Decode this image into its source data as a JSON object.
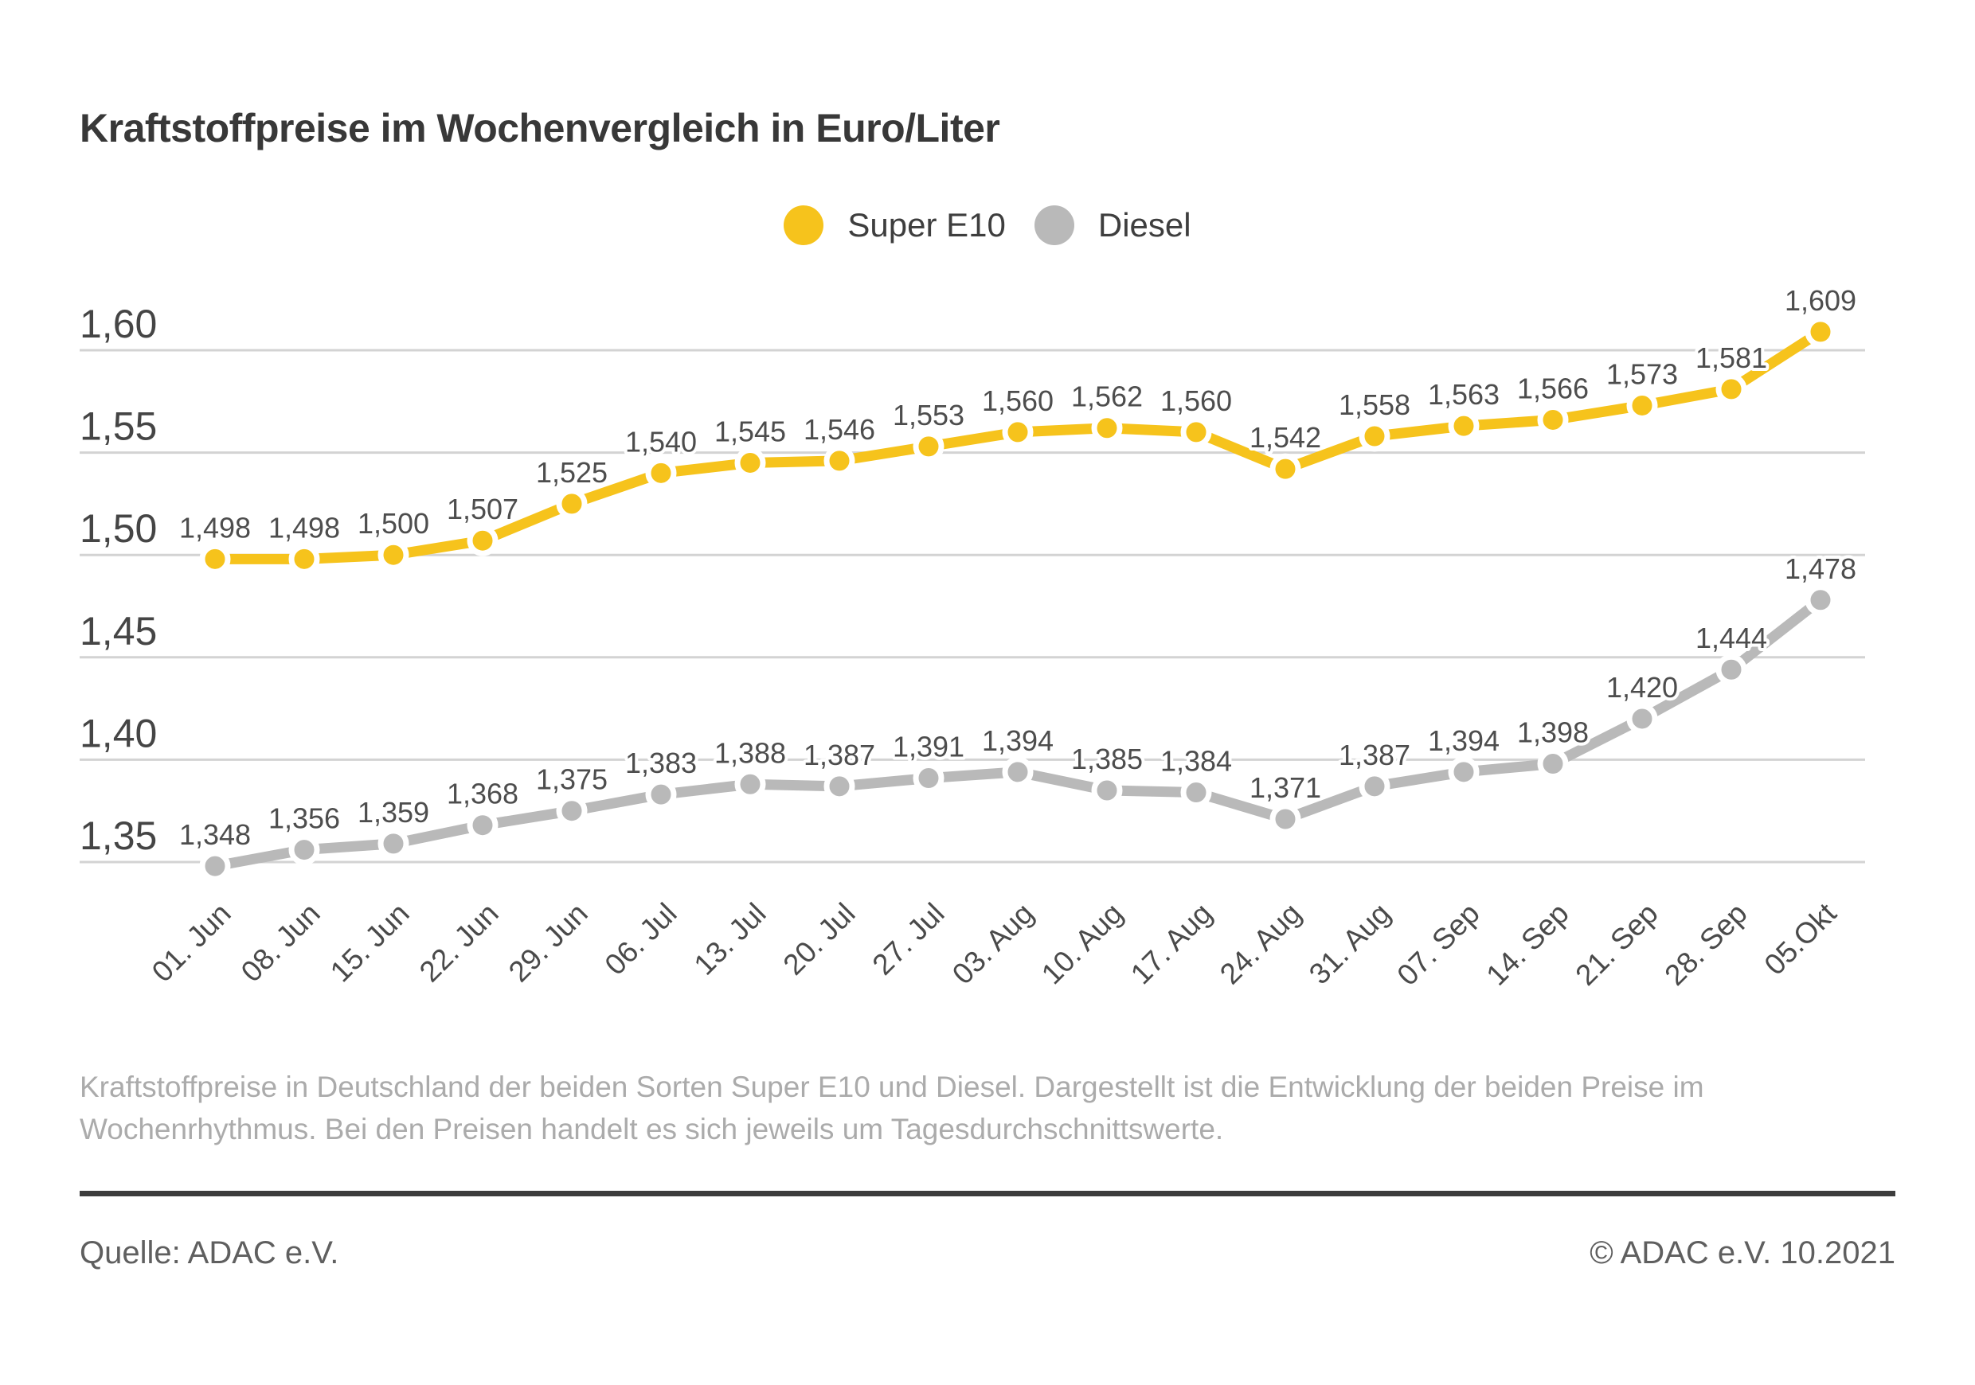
{
  "title": "Kraftstoffpreise im Wochenvergleich in Euro/Liter",
  "legend": [
    {
      "label": "Super E10",
      "color": "#F6C31C"
    },
    {
      "label": "Diesel",
      "color": "#B9B9B9"
    }
  ],
  "chart_data": {
    "type": "line",
    "unit": "Euro/Liter",
    "categories": [
      "01. Jun",
      "08. Jun",
      "15. Jun",
      "22. Jun",
      "29. Jun",
      "06. Jul",
      "13. Jul",
      "20. Jul",
      "27. Jul",
      "03. Aug",
      "10. Aug",
      "17. Aug",
      "24. Aug",
      "31. Aug",
      "07. Sep",
      "14. Sep",
      "21. Sep",
      "28. Sep",
      "05.Okt"
    ],
    "series": [
      {
        "name": "Super E10",
        "color": "#F6C31C",
        "values": [
          1.498,
          1.498,
          1.5,
          1.507,
          1.525,
          1.54,
          1.545,
          1.546,
          1.553,
          1.56,
          1.562,
          1.56,
          1.542,
          1.558,
          1.563,
          1.566,
          1.573,
          1.581,
          1.609
        ]
      },
      {
        "name": "Diesel",
        "color": "#B9B9B9",
        "values": [
          1.348,
          1.356,
          1.359,
          1.368,
          1.375,
          1.383,
          1.388,
          1.387,
          1.391,
          1.394,
          1.385,
          1.384,
          1.371,
          1.387,
          1.394,
          1.398,
          1.42,
          1.444,
          1.478
        ]
      }
    ],
    "y_ticks": [
      1.6,
      1.55,
      1.5,
      1.45,
      1.4,
      1.35
    ],
    "y_tick_labels": [
      "1,60",
      "1,55",
      "1,50",
      "1,45",
      "1,40",
      "1,35"
    ],
    "ylim": [
      1.35,
      1.6
    ],
    "grid": true,
    "grid_color": "#D3D3D3",
    "legend_position": "top-center",
    "decimal_separator": ","
  },
  "footer": {
    "description_line1": "Kraftstoffpreise in Deutschland der beiden Sorten Super E10 und Diesel. Dargestellt ist die Entwicklung der beiden Preise im",
    "description_line2": "Wochenrhythmus. Bei den Preisen handelt es sich jeweils um Tagesdurchschnittswerte.",
    "source": "Quelle: ADAC e.V.",
    "copyright": "© ADAC e.V. 10.2021"
  }
}
